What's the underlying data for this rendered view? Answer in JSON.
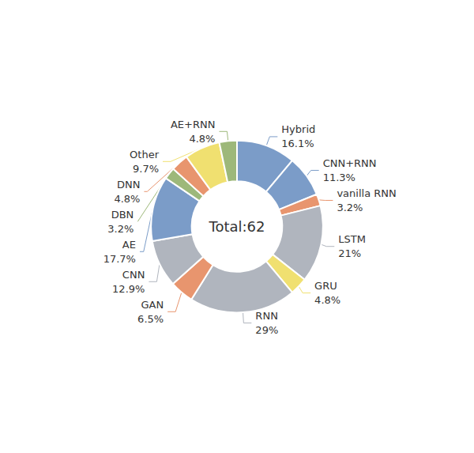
{
  "chart_data": {
    "type": "pie",
    "title": "Total:62",
    "categories": [
      "Hybrid",
      "CNN+RNN",
      "vanilla RNN",
      "LSTM",
      "GRU",
      "RNN",
      "GAN",
      "CNN",
      "AE",
      "DBN",
      "DNN",
      "Other",
      "AE+RNN"
    ],
    "values": [
      16.1,
      11.3,
      3.2,
      21.0,
      4.8,
      29.0,
      6.5,
      12.9,
      17.7,
      3.2,
      4.8,
      9.7,
      4.8
    ],
    "value_labels": [
      "16.1%",
      "11.3%",
      "3.2%",
      "21%",
      "4.8%",
      "29%",
      "6.5%",
      "12.9%",
      "17.7%",
      "3.2%",
      "4.8%",
      "9.7%",
      "4.8%"
    ],
    "colors": [
      "#7b9cc8",
      "#7b9cc8",
      "#e8956e",
      "#b0b5be",
      "#f0e070",
      "#b0b5be",
      "#e8956e",
      "#b0b5be",
      "#7b9cc8",
      "#9db87a",
      "#e8956e",
      "#f0e070",
      "#9db87a"
    ],
    "data_labels": true
  }
}
